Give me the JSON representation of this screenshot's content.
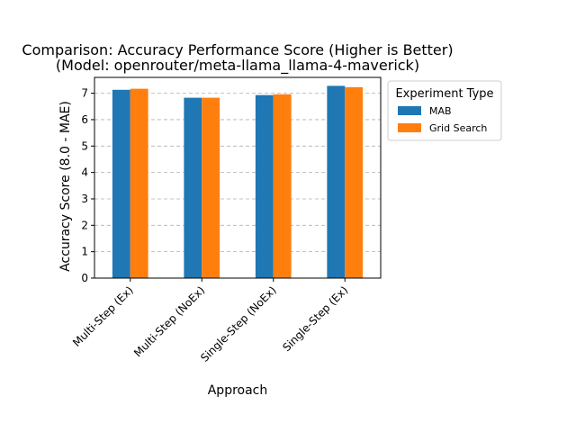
{
  "chart_data": {
    "type": "bar",
    "title": "Comparison: Accuracy Performance Score (Higher is Better)",
    "subtitle": "(Model: openrouter/meta-llama_llama-4-maverick)",
    "xlabel": "Approach",
    "ylabel": "Accuracy Score (8.0 - MAE)",
    "ylim": [
      0,
      7.6
    ],
    "yticks": [
      0,
      1,
      2,
      3,
      4,
      5,
      6,
      7
    ],
    "grid": "y-dashed",
    "categories": [
      "Multi-Step (Ex)",
      "Multi-Step (NoEx)",
      "Single-Step (NoEx)",
      "Single-Step (Ex)"
    ],
    "series": [
      {
        "name": "MAB",
        "color": "#1f77b4",
        "values": [
          7.13,
          6.83,
          6.93,
          7.28
        ]
      },
      {
        "name": "Grid Search",
        "color": "#ff7f0e",
        "values": [
          7.17,
          6.83,
          6.96,
          7.23
        ]
      }
    ],
    "legend": {
      "title": "Experiment Type",
      "placement": "outside-upper-right"
    }
  }
}
